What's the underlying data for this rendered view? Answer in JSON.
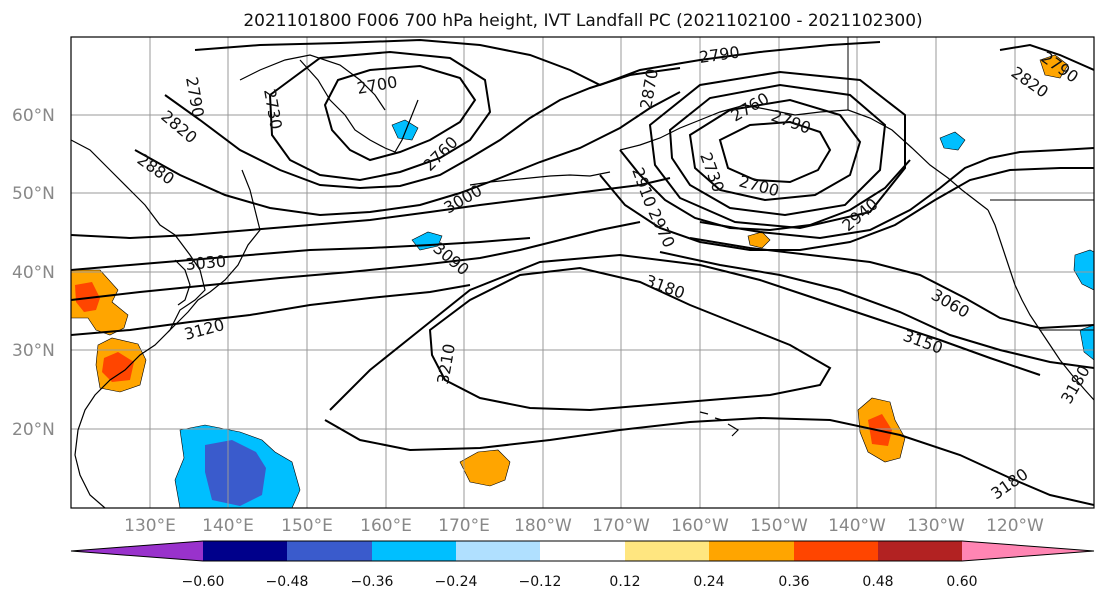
{
  "title": "2021101800 F006 700 hPa height, IVT Landfall PC (2021102100 - 2021102300)",
  "lat_labels": [
    "60°N",
    "50°N",
    "40°N",
    "30°N",
    "20°N"
  ],
  "lon_labels": [
    "130°E",
    "140°E",
    "150°E",
    "160°E",
    "170°E",
    "180°W",
    "170°W",
    "160°W",
    "150°W",
    "140°W",
    "130°W",
    "120°W"
  ],
  "colorbar": {
    "colors": [
      "#9932CC",
      "#00008B",
      "#3A5BCC",
      "#00BFFF",
      "#B0E0FF",
      "#FFFFFF",
      "#FFE680",
      "#FFA500",
      "#FF4500",
      "#B22222",
      "#FF85B3"
    ],
    "tick_labels": [
      "−0.60",
      "−0.48",
      "−0.36",
      "−0.24",
      "−0.12",
      "0.12",
      "0.24",
      "0.36",
      "0.48",
      "0.60"
    ]
  },
  "contour_labels": [
    "2790",
    "2790",
    "2790",
    "2700",
    "2730",
    "2820",
    "2820",
    "2880",
    "2760",
    "3000",
    "2870",
    "2760",
    "2790",
    "2730",
    "2910",
    "2700",
    "2970",
    "2940",
    "3030",
    "3090",
    "3180",
    "3060",
    "3120",
    "3150",
    "3210",
    "3180",
    "3180"
  ],
  "colors": {
    "land": "#000000",
    "contour": "#000000",
    "grid": "#999999"
  }
}
